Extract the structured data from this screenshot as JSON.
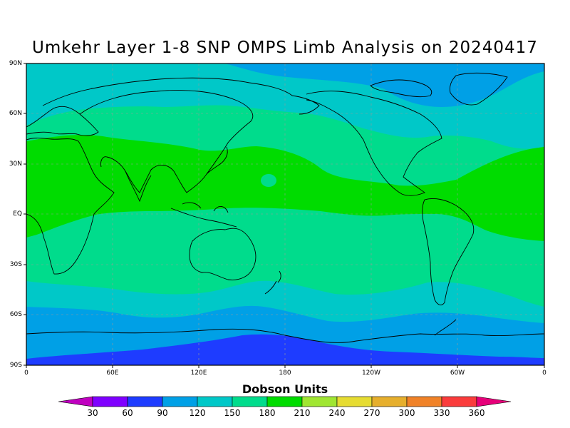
{
  "title": "Umkehr Layer 1-8 SNP OMPS Limb Analysis on 20240417",
  "lat_labels": [
    "90N",
    "60N",
    "30N",
    "EQ",
    "30S",
    "60S",
    "90S"
  ],
  "lon_labels": [
    "0",
    "60E",
    "120E",
    "180",
    "120W",
    "60W",
    "0"
  ],
  "colorbar": {
    "title": "Dobson Units",
    "ticks": [
      "30",
      "60",
      "90",
      "120",
      "150",
      "180",
      "210",
      "240",
      "270",
      "300",
      "330",
      "360"
    ],
    "colors": [
      "#c000c0",
      "#7f00ff",
      "#1e3cff",
      "#00a0e6",
      "#00c8c8",
      "#00dc8c",
      "#00dc00",
      "#a0e632",
      "#e6dc32",
      "#e6af2d",
      "#f08228",
      "#fa3c3c",
      "#e6007a"
    ]
  },
  "map": {
    "bands": [
      {
        "range": "180-210",
        "color": "#00dc00"
      },
      {
        "range": "150-180",
        "color": "#00dc8c"
      },
      {
        "range": "120-150",
        "color": "#00c8c8"
      },
      {
        "range": "90-120",
        "color": "#00a0e6"
      },
      {
        "range": "60-90",
        "color": "#1e3cff"
      }
    ]
  }
}
